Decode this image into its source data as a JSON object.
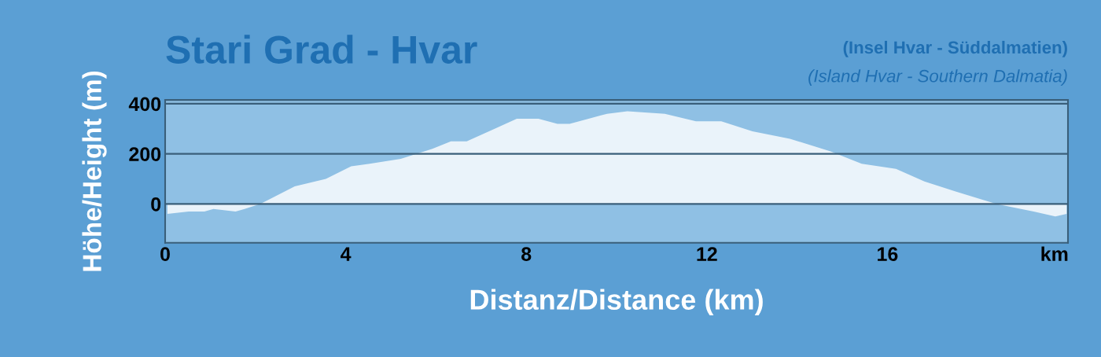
{
  "chart_data": {
    "type": "area",
    "title": "Stari Grad - Hvar",
    "subtitle": "(Insel Hvar - Süddalmatien)",
    "annotations": [
      "(Island Hvar - Southern Dalmatia)"
    ],
    "xlabel": "Distanz/Distance (km)",
    "ylabel": "Höhe/Height (m)",
    "x": [
      0.05,
      0.52,
      0.87,
      1.07,
      1.56,
      1.76,
      2.11,
      2.87,
      3.56,
      4.12,
      4.53,
      5.22,
      5.92,
      6.33,
      6.68,
      7.3,
      7.79,
      7.99,
      8.27,
      8.69,
      8.96,
      9.38,
      9.79,
      10.24,
      11.07,
      11.76,
      12.32,
      13.01,
      13.84,
      14.74,
      15.43,
      16.19,
      16.82,
      17.51,
      18.41,
      19.24,
      19.72,
      19.97
    ],
    "series": [
      {
        "color": "#eaf3fa",
        "values": [
          -40,
          -30,
          -30,
          -20,
          -30,
          -20,
          0,
          70,
          100,
          150,
          160,
          180,
          220,
          250,
          250,
          300,
          340,
          340,
          340,
          320,
          320,
          340,
          360,
          370,
          360,
          330,
          330,
          290,
          260,
          210,
          160,
          140,
          90,
          50,
          0,
          -30,
          -50,
          -40
        ]
      }
    ],
    "xlim": [
      0,
      20
    ],
    "ylim": [
      -155,
      415
    ],
    "xticks": [
      0,
      4,
      8,
      12,
      16,
      {
        "value": 19.7,
        "label": "km"
      }
    ],
    "yticks": [
      0,
      200,
      400
    ],
    "grid": "y"
  }
}
